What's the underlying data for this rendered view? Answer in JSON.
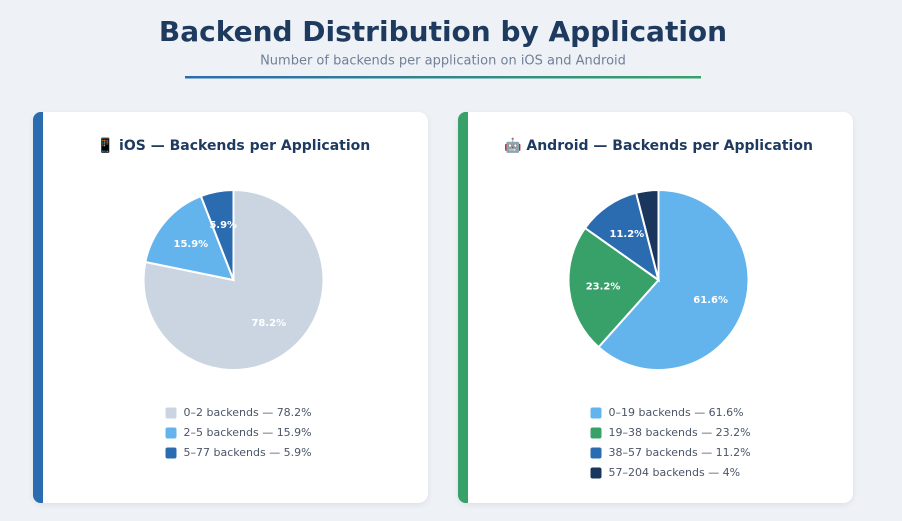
{
  "header": {
    "title": "Backend Distribution by Application",
    "subtitle": "Number of backends per application on iOS and Android"
  },
  "chart_data": [
    {
      "type": "pie",
      "title": "📱 iOS — Backends per Application",
      "categories": [
        "0–2 backends — 78.2%",
        "2–5 backends — 15.9%",
        "5–77 backends — 5.9%"
      ],
      "values": [
        78.2,
        15.9,
        5.9
      ],
      "value_labels": [
        "78.2%",
        "15.9%",
        "5.9%"
      ],
      "colors": [
        "#cbd5e1",
        "#63b3ed",
        "#2b6cb0"
      ],
      "accent": "#2b6cb0"
    },
    {
      "type": "pie",
      "title": "🤖 Android — Backends per Application",
      "categories": [
        "0–19 backends — 61.6%",
        "19–38 backends — 23.2%",
        "38–57 backends — 11.2%",
        "57–204 backends — 4%"
      ],
      "values": [
        61.6,
        23.2,
        11.2,
        4
      ],
      "value_labels": [
        "61.6%",
        "23.2%",
        "11.2%",
        null
      ],
      "colors": [
        "#63b3ed",
        "#38a169",
        "#2b6cb0",
        "#1a365d"
      ],
      "accent": "#38a169"
    }
  ]
}
